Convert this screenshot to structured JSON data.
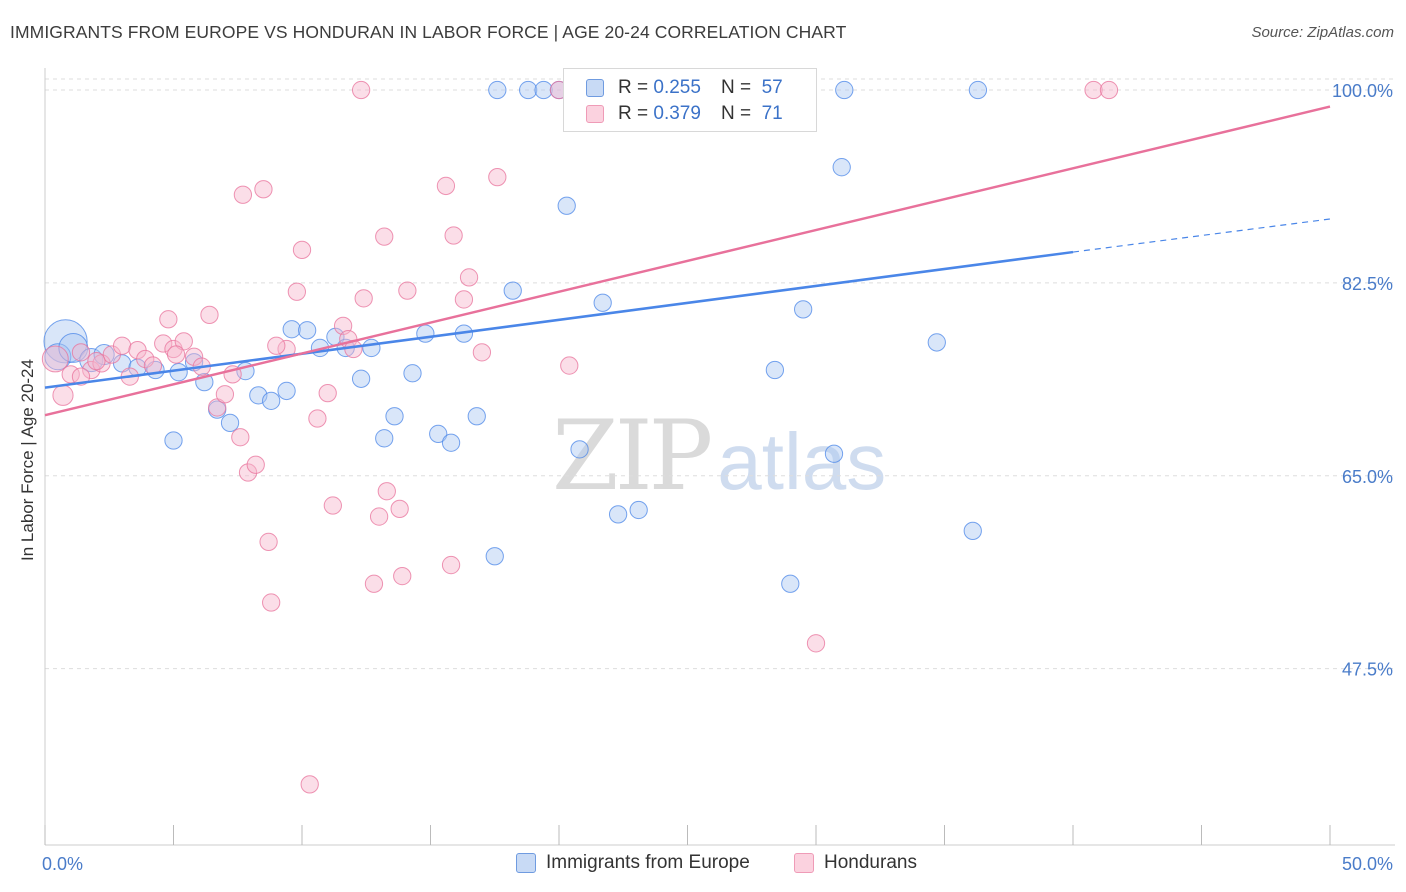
{
  "title": "IMMIGRANTS FROM EUROPE VS HONDURAN IN LABOR FORCE | AGE 20-24 CORRELATION CHART",
  "source": "Source: ZipAtlas.com",
  "watermark": {
    "zip": "ZIP",
    "atlas": "atlas"
  },
  "colors": {
    "blue": "#4a86e8",
    "pink": "#e8719b",
    "blue_fill": "#aac8f2",
    "pink_fill": "#f6b6cb",
    "grid": "#dddddd",
    "tick_label": "#4a7cc9"
  },
  "legend": {
    "rows": [
      {
        "r_label": "R =",
        "r_value": "0.255",
        "n_label": "N =",
        "n_value": "57",
        "color": "blue"
      },
      {
        "r_label": "R =",
        "r_value": "0.379",
        "n_label": "N =",
        "n_value": "71",
        "color": "pink"
      }
    ]
  },
  "bottom_legend": [
    {
      "label": "Immigrants from Europe",
      "color": "blue"
    },
    {
      "label": "Hondurans",
      "color": "pink"
    }
  ],
  "chart_data": {
    "type": "scatter",
    "title": "IMMIGRANTS FROM EUROPE VS HONDURAN IN LABOR FORCE | AGE 20-24 CORRELATION CHART",
    "xlabel": "",
    "ylabel": "In Labor Force | Age 20-24",
    "xlim": [
      0,
      50
    ],
    "ylim": [
      31.5,
      102
    ],
    "x_tick_labels": [
      {
        "value": 0,
        "label": "0.0%"
      },
      {
        "value": 50,
        "label": "50.0%"
      }
    ],
    "x_minor_ticks": [
      5,
      10,
      15,
      20,
      25,
      30,
      35,
      40,
      45
    ],
    "y_tick_labels": [
      {
        "value": 47.5,
        "label": "47.5%"
      },
      {
        "value": 65.0,
        "label": "65.0%"
      },
      {
        "value": 82.5,
        "label": "82.5%"
      },
      {
        "value": 100.0,
        "label": "100.0%"
      }
    ],
    "grid": true,
    "legend_position": "top-center",
    "series": [
      {
        "name": "Immigrants from Europe",
        "color": "blue",
        "points": [
          [
            0.8,
            77.2,
            30
          ],
          [
            0.5,
            75.8,
            18
          ],
          [
            1.1,
            76.6,
            20
          ],
          [
            1.8,
            75.5,
            16
          ],
          [
            2.3,
            76.0,
            14
          ],
          [
            3.0,
            75.2,
            12
          ],
          [
            3.6,
            74.8,
            12
          ],
          [
            4.3,
            74.6,
            12
          ],
          [
            5.2,
            74.4,
            12
          ],
          [
            5.0,
            68.2,
            12
          ],
          [
            5.8,
            75.3,
            12
          ],
          [
            6.2,
            73.5,
            12
          ],
          [
            6.7,
            71.0,
            12
          ],
          [
            7.2,
            69.8,
            12
          ],
          [
            7.8,
            74.5,
            12
          ],
          [
            8.3,
            72.3,
            12
          ],
          [
            8.8,
            71.8,
            12
          ],
          [
            9.4,
            72.7,
            12
          ],
          [
            9.6,
            78.3,
            12
          ],
          [
            10.2,
            78.2,
            12
          ],
          [
            10.7,
            76.6,
            12
          ],
          [
            11.3,
            77.6,
            12
          ],
          [
            11.7,
            76.6,
            12
          ],
          [
            12.3,
            73.8,
            12
          ],
          [
            12.7,
            76.6,
            12
          ],
          [
            13.2,
            68.4,
            12
          ],
          [
            13.6,
            70.4,
            12
          ],
          [
            14.3,
            74.3,
            12
          ],
          [
            14.8,
            77.9,
            12
          ],
          [
            15.3,
            68.8,
            12
          ],
          [
            15.8,
            68.0,
            12
          ],
          [
            16.3,
            77.9,
            12
          ],
          [
            16.8,
            70.4,
            12
          ],
          [
            17.5,
            57.7,
            12
          ],
          [
            18.2,
            81.8,
            12
          ],
          [
            17.6,
            100.0,
            12
          ],
          [
            18.8,
            100.0,
            12
          ],
          [
            19.4,
            100.0,
            12
          ],
          [
            20.0,
            100.0,
            12
          ],
          [
            20.3,
            89.5,
            12
          ],
          [
            20.8,
            67.4,
            12
          ],
          [
            22.3,
            61.5,
            12
          ],
          [
            23.1,
            61.9,
            12
          ],
          [
            21.7,
            80.7,
            12
          ],
          [
            24.7,
            100.0,
            12
          ],
          [
            26.3,
            100.0,
            12
          ],
          [
            26.9,
            100.0,
            12
          ],
          [
            28.1,
            100.0,
            12
          ],
          [
            28.4,
            74.6,
            12
          ],
          [
            29.0,
            55.2,
            12
          ],
          [
            29.5,
            80.1,
            12
          ],
          [
            30.7,
            67.0,
            12
          ],
          [
            31.1,
            100.0,
            12
          ],
          [
            31.0,
            93.0,
            12
          ],
          [
            34.7,
            77.1,
            12
          ],
          [
            36.3,
            100.0,
            12
          ],
          [
            36.1,
            60.0,
            12
          ]
        ]
      },
      {
        "name": "Hondurans",
        "color": "pink",
        "points": [
          [
            0.4,
            75.6,
            18
          ],
          [
            0.7,
            72.3,
            14
          ],
          [
            1.0,
            74.2,
            12
          ],
          [
            1.4,
            76.2,
            12
          ],
          [
            1.8,
            74.6,
            12
          ],
          [
            2.2,
            75.2,
            12
          ],
          [
            2.6,
            76.0,
            12
          ],
          [
            3.0,
            76.8,
            12
          ],
          [
            3.3,
            74.0,
            12
          ],
          [
            3.6,
            76.4,
            12
          ],
          [
            3.9,
            75.6,
            12
          ],
          [
            4.2,
            75.0,
            12
          ],
          [
            4.6,
            77.0,
            12
          ],
          [
            4.8,
            79.2,
            12
          ],
          [
            5.0,
            76.5,
            12
          ],
          [
            5.4,
            77.2,
            12
          ],
          [
            5.8,
            75.8,
            12
          ],
          [
            6.1,
            74.9,
            12
          ],
          [
            6.4,
            79.6,
            12
          ],
          [
            6.7,
            71.2,
            12
          ],
          [
            7.0,
            72.4,
            12
          ],
          [
            7.3,
            74.2,
            12
          ],
          [
            7.6,
            68.5,
            12
          ],
          [
            7.9,
            65.3,
            12
          ],
          [
            8.2,
            66.0,
            12
          ],
          [
            7.7,
            90.5,
            12
          ],
          [
            8.5,
            91.0,
            12
          ],
          [
            8.7,
            59.0,
            12
          ],
          [
            8.8,
            53.5,
            12
          ],
          [
            9.4,
            76.5,
            12
          ],
          [
            9.8,
            81.7,
            12
          ],
          [
            10.0,
            85.5,
            12
          ],
          [
            10.3,
            37.0,
            12
          ],
          [
            10.6,
            70.2,
            12
          ],
          [
            11.0,
            72.5,
            12
          ],
          [
            11.2,
            62.3,
            12
          ],
          [
            11.6,
            78.6,
            12
          ],
          [
            11.8,
            77.4,
            12
          ],
          [
            12.3,
            100.0,
            12
          ],
          [
            12.4,
            81.1,
            12
          ],
          [
            12.8,
            55.2,
            12
          ],
          [
            13.0,
            61.3,
            12
          ],
          [
            13.2,
            86.7,
            12
          ],
          [
            13.3,
            63.6,
            12
          ],
          [
            13.8,
            62.0,
            12
          ],
          [
            13.9,
            55.9,
            12
          ],
          [
            14.1,
            81.8,
            12
          ],
          [
            15.6,
            91.3,
            12
          ],
          [
            15.8,
            56.9,
            12
          ],
          [
            15.9,
            86.8,
            12
          ],
          [
            16.3,
            81.0,
            12
          ],
          [
            16.5,
            83.0,
            12
          ],
          [
            17.0,
            76.2,
            12
          ],
          [
            17.6,
            92.1,
            12
          ],
          [
            20.0,
            100.0,
            12
          ],
          [
            20.4,
            75.0,
            12
          ],
          [
            21.3,
            100.0,
            12
          ],
          [
            22.0,
            100.0,
            12
          ],
          [
            23.0,
            100.0,
            12
          ],
          [
            24.4,
            100.0,
            12
          ],
          [
            26.1,
            100.0,
            12
          ],
          [
            27.0,
            100.0,
            12
          ],
          [
            28.5,
            100.0,
            12
          ],
          [
            30.0,
            49.8,
            12
          ],
          [
            40.8,
            100.0,
            12
          ],
          [
            41.4,
            100.0,
            12
          ],
          [
            1.4,
            74.0,
            12
          ],
          [
            2.0,
            75.4,
            12
          ],
          [
            5.1,
            76.0,
            12
          ],
          [
            9.0,
            76.8,
            12
          ],
          [
            12.0,
            76.5,
            12
          ]
        ]
      }
    ],
    "trendlines": [
      {
        "series": "Immigrants from Europe",
        "color": "blue",
        "x": [
          0,
          40
        ],
        "y": [
          73.0,
          85.3
        ],
        "dashed_to": [
          50,
          88.3
        ]
      },
      {
        "series": "Hondurans",
        "color": "pink",
        "x": [
          0,
          50
        ],
        "y": [
          70.5,
          98.5
        ]
      }
    ]
  }
}
